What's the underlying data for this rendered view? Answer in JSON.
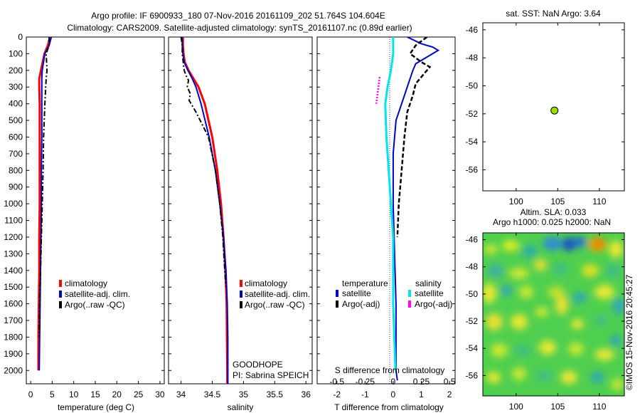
{
  "header": {
    "line1": "Argo profile: IF 6900933_180 07-Nov-2016 20161109_202 51.764S 104.604E",
    "line2": "Climatology: CARS2009. Satellite-adjusted climatology: synTS_20161107.nc (0.89d earlier)"
  },
  "footer": {
    "project": "GOODHOPE",
    "pi": "PI: Sabrina SPEICH",
    "credit": "©IMOS 15-Nov-2016 20:45:27"
  },
  "colors": {
    "climatology": "#ff0000",
    "satellite": "#0000cc",
    "argo": "#000000",
    "sal_satellite": "#00e5e5",
    "sal_argo": "#ff00ff",
    "marker": "#99dd00"
  },
  "chart_data": [
    {
      "type": "line",
      "xlabel": "temperature (deg C)",
      "ylabel": "",
      "xlim": [
        -1,
        31
      ],
      "ylim": [
        2080,
        0
      ],
      "y_reversed": true,
      "xticks": [
        "0",
        "5",
        "10",
        "15",
        "20",
        "25",
        "30"
      ],
      "yticks": [
        "0",
        "100",
        "200",
        "300",
        "400",
        "500",
        "600",
        "700",
        "800",
        "900",
        "1000",
        "1100",
        "1200",
        "1300",
        "1400",
        "1500",
        "1600",
        "1700",
        "1800",
        "1900",
        "2000"
      ],
      "legend": [
        "climatology",
        "satellite-adj. clim.",
        "Argo(..raw -QC)"
      ],
      "series": [
        {
          "name": "climatology",
          "style": "solid",
          "x": [
            4.5,
            4.0,
            3.2,
            2.4,
            2.0,
            2.0,
            2.1,
            2.1,
            2.1,
            2.1,
            2.0,
            2.0,
            1.9,
            1.8,
            1.8
          ],
          "y": [
            0,
            50,
            100,
            200,
            250,
            300,
            400,
            600,
            800,
            1000,
            1200,
            1400,
            1600,
            1800,
            2000
          ]
        },
        {
          "name": "satellite-adj. clim.",
          "style": "solid",
          "x": [
            4.8,
            4.3,
            3.3,
            2.7,
            2.6,
            2.6,
            2.6,
            2.6,
            2.5,
            2.5,
            2.4,
            2.3,
            2.2,
            2.1,
            2.0
          ],
          "y": [
            0,
            50,
            100,
            200,
            250,
            300,
            400,
            600,
            800,
            1000,
            1200,
            1400,
            1600,
            1800,
            2000
          ]
        },
        {
          "name": "Argo(..raw -QC)",
          "style": "dashdot",
          "x": [
            4.3,
            4.3,
            3.6,
            3.8,
            3.6,
            3.5,
            3.3,
            3.0,
            2.9,
            2.7,
            2.5,
            2.3,
            2.1,
            2.0
          ],
          "y": [
            0,
            50,
            100,
            200,
            250,
            300,
            400,
            600,
            800,
            1000,
            1200,
            1400,
            1600,
            1800
          ]
        }
      ]
    },
    {
      "type": "line",
      "xlabel": "salinity",
      "ylabel": "",
      "xlim": [
        33.8,
        36.1
      ],
      "ylim": [
        2080,
        0
      ],
      "y_reversed": true,
      "xticks": [
        "34",
        "34.5",
        "35",
        "35.5",
        "36"
      ],
      "legend": [
        "climatology",
        "satellite-adj. clim.",
        "Argo(..raw -QC)"
      ],
      "series": [
        {
          "name": "climatology",
          "style": "solid",
          "x": [
            34.03,
            34.03,
            34.04,
            34.06,
            34.12,
            34.2,
            34.28,
            34.38,
            34.5,
            34.58,
            34.64,
            34.68,
            34.71,
            34.73,
            34.735,
            34.74,
            34.74
          ],
          "y": [
            0,
            50,
            100,
            150,
            200,
            250,
            300,
            400,
            600,
            800,
            1000,
            1200,
            1400,
            1600,
            1800,
            2000,
            2080
          ]
        },
        {
          "name": "satellite-adj. clim.",
          "style": "solid",
          "x": [
            34.02,
            34.02,
            34.03,
            34.05,
            34.11,
            34.18,
            34.24,
            34.32,
            34.45,
            34.55,
            34.62,
            34.68,
            34.72,
            34.74,
            34.75,
            34.75,
            34.75
          ],
          "y": [
            0,
            50,
            100,
            150,
            200,
            250,
            300,
            400,
            600,
            800,
            1000,
            1200,
            1400,
            1600,
            1800,
            2000,
            2080
          ]
        },
        {
          "name": "Argo(..raw -QC)",
          "style": "dashdot",
          "x": [
            34.0,
            34.02,
            34.02,
            34.05,
            34.08,
            34.12,
            34.1,
            34.15,
            34.13,
            34.24,
            34.44,
            34.55,
            34.62,
            34.67,
            34.7,
            34.72
          ],
          "y": [
            0,
            50,
            100,
            200,
            230,
            260,
            300,
            340,
            380,
            450,
            600,
            800,
            1000,
            1200,
            1400,
            1500
          ]
        }
      ]
    },
    {
      "type": "line",
      "xlabel": "T difference from climatology",
      "top_label": "S difference from climatology",
      "xlim": [
        -2.7,
        2.2
      ],
      "x2lim": [
        -0.675,
        0.55
      ],
      "ylim": [
        2080,
        0
      ],
      "y_reversed": true,
      "xticks": [
        "-2",
        "-1",
        "0",
        "1",
        "2"
      ],
      "x2ticks": [
        "-0.5",
        "-0.25",
        "0",
        "0.25",
        "0.5"
      ],
      "legend": {
        "temperature_title": "temperature",
        "salinity_title": "salinity",
        "temperature_items": [
          "satellite",
          "Argo(-adj)"
        ],
        "salinity_items": [
          "satellite",
          "Argo(-adj)"
        ]
      },
      "series": [
        {
          "name": "temperature satellite",
          "style": "solid",
          "x": [
            0.5,
            1.0,
            1.4,
            1.6,
            1.2,
            0.8,
            0.7,
            0.5,
            0.3,
            0.1,
            0.0,
            0.0,
            0.05,
            0.1,
            0.1,
            0.1,
            0.1,
            0.15
          ],
          "y": [
            0,
            40,
            60,
            80,
            120,
            160,
            200,
            300,
            400,
            500,
            700,
            1000,
            1300,
            1600,
            1800,
            1950,
            2000,
            2060
          ]
        },
        {
          "name": "temperature Argo(-adj)",
          "style": "dashed",
          "x": [
            1.2,
            0.8,
            0.6,
            1.0,
            1.3,
            1.1,
            0.8,
            0.7,
            0.5,
            0.4,
            0.3,
            0.2,
            0.15
          ],
          "y": [
            0,
            50,
            100,
            150,
            180,
            220,
            280,
            350,
            450,
            600,
            800,
            1000,
            1200
          ]
        },
        {
          "name": "salinity satellite",
          "style": "solid",
          "x": [
            0.0,
            0.0,
            -0.02,
            -0.05,
            -0.07,
            -0.06,
            -0.04,
            -0.02,
            0.0,
            0.0,
            0.0,
            0.01,
            0.02
          ],
          "y": [
            0,
            100,
            200,
            300,
            400,
            600,
            800,
            1000,
            1200,
            1400,
            1600,
            1800,
            2000
          ]
        },
        {
          "name": "salinity Argo(-adj)",
          "style": "dotted",
          "x": [
            -0.12,
            -0.15
          ],
          "y": [
            240,
            400
          ]
        }
      ]
    },
    {
      "type": "scatter",
      "title": "sat. SST: NaN Argo: 3.64",
      "xlim": [
        96,
        113
      ],
      "ylim": [
        -57.5,
        -45.5
      ],
      "xticks": [
        "100",
        "105",
        "110"
      ],
      "yticks": [
        "-46",
        "-48",
        "-50",
        "-52",
        "-54",
        "-56"
      ],
      "points": [
        {
          "x": 104.604,
          "y": -51.764
        }
      ]
    },
    {
      "type": "heatmap",
      "title_line1": "Altim. SLA: 0.033",
      "title_line2": "Argo h1000: 0.025 h2000: NaN",
      "xlim": [
        96,
        113
      ],
      "ylim": [
        -57.5,
        -45.5
      ],
      "xticks": [
        "100",
        "105",
        "110"
      ],
      "yticks": [
        "-46",
        "-48",
        "-50",
        "-52",
        "-54",
        "-56"
      ]
    }
  ]
}
